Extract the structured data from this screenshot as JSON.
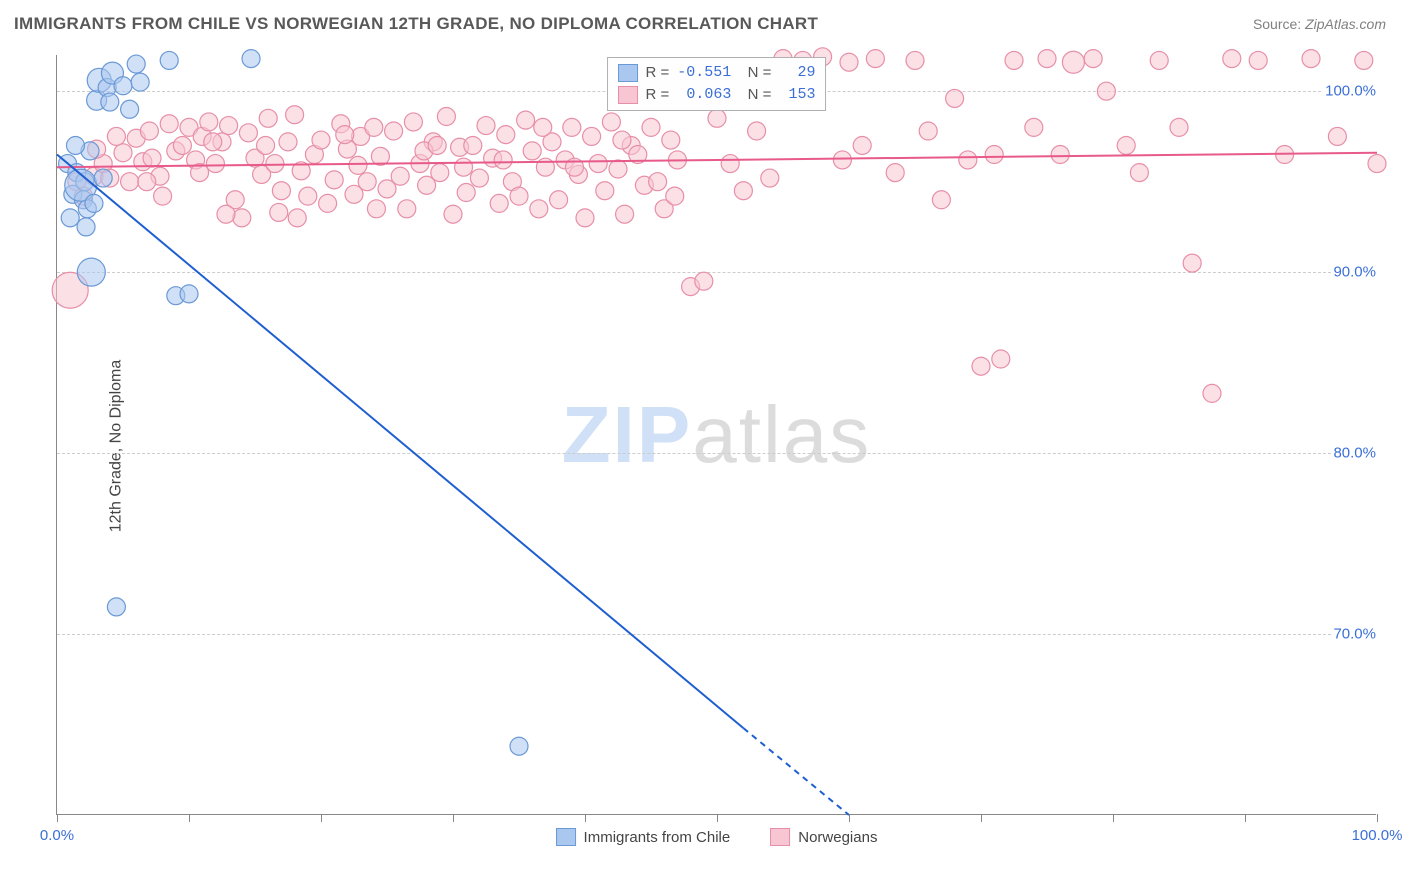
{
  "title": "IMMIGRANTS FROM CHILE VS NORWEGIAN 12TH GRADE, NO DIPLOMA CORRELATION CHART",
  "source_prefix": "Source: ",
  "source_name": "ZipAtlas.com",
  "ylabel": "12th Grade, No Diploma",
  "watermark_a": "ZIP",
  "watermark_b": "atlas",
  "chart": {
    "type": "scatter",
    "xlim": [
      0,
      100
    ],
    "ylim": [
      60,
      102
    ],
    "xtick_positions": [
      0,
      10,
      20,
      30,
      40,
      50,
      60,
      70,
      80,
      90,
      100
    ],
    "xtick_labels_shown": {
      "0": "0.0%",
      "100": "100.0%"
    },
    "ytick_positions": [
      70,
      80,
      90,
      100
    ],
    "ytick_labels": {
      "70": "70.0%",
      "80": "80.0%",
      "90": "90.0%",
      "100": "100.0%"
    },
    "grid_color": "#cccccc",
    "background_color": "#ffffff",
    "axis_color": "#888888",
    "tick_label_color": "#3b6fd6",
    "watermark_color_a": "#cfe0f7",
    "watermark_color_b": "#dcdcdc",
    "marker_radius": 9,
    "marker_stroke_width": 1.2,
    "trend_line_width": 2
  },
  "series": {
    "chile": {
      "label": "Immigrants from Chile",
      "fill": "#a9c7ef",
      "stroke": "#6a99d6",
      "line_color": "#1f5fd0",
      "R": "-0.551",
      "N": "29",
      "trend_line": {
        "x1": 0,
        "y1": 96.5,
        "x2": 60,
        "y2": 60
      },
      "trend_extrapolate": {
        "x1": 52,
        "y1": 64.8,
        "x2": 60,
        "y2": 60
      },
      "points": [
        [
          0.8,
          96.0
        ],
        [
          1.2,
          94.3
        ],
        [
          1.5,
          95.5
        ],
        [
          2.0,
          94.0
        ],
        [
          2.1,
          95.0
        ],
        [
          2.3,
          93.5
        ],
        [
          2.5,
          96.7
        ],
        [
          3.0,
          99.5,
          10
        ],
        [
          3.2,
          100.6,
          12
        ],
        [
          3.8,
          100.2
        ],
        [
          4.0,
          99.4
        ],
        [
          4.2,
          101.0,
          11
        ],
        [
          5.0,
          100.3
        ],
        [
          5.5,
          99.0
        ],
        [
          6.0,
          101.5
        ],
        [
          6.3,
          100.5
        ],
        [
          8.5,
          101.7
        ],
        [
          9.0,
          88.7
        ],
        [
          10.0,
          88.8
        ],
        [
          14.7,
          101.8
        ],
        [
          4.5,
          71.5
        ],
        [
          35.0,
          63.8
        ],
        [
          1.0,
          93.0
        ],
        [
          1.8,
          94.8,
          16
        ],
        [
          2.6,
          90.0,
          14
        ],
        [
          1.4,
          97.0
        ],
        [
          2.2,
          92.5
        ],
        [
          2.8,
          93.8
        ],
        [
          3.5,
          95.2
        ]
      ]
    },
    "norwegians": {
      "label": "Norwegians",
      "fill": "#f7c6d2",
      "stroke": "#e78fa8",
      "line_color": "#e75a8a",
      "R": "0.063",
      "N": "153",
      "trend_line": {
        "x1": 0,
        "y1": 95.8,
        "x2": 100,
        "y2": 96.6
      },
      "points": [
        [
          1.0,
          89.0,
          18
        ],
        [
          1.5,
          95.0
        ],
        [
          2.0,
          94.2
        ],
        [
          2.8,
          95.3
        ],
        [
          3.5,
          96.0
        ],
        [
          4.0,
          95.2
        ],
        [
          5.0,
          96.6
        ],
        [
          5.5,
          95.0
        ],
        [
          6.0,
          97.4
        ],
        [
          6.5,
          96.1
        ],
        [
          7.0,
          97.8
        ],
        [
          7.8,
          95.3
        ],
        [
          8.5,
          98.2
        ],
        [
          9.0,
          96.7
        ],
        [
          9.5,
          97.0
        ],
        [
          10.0,
          98.0
        ],
        [
          10.5,
          96.2
        ],
        [
          11.0,
          97.5
        ],
        [
          11.5,
          98.3
        ],
        [
          12.0,
          96.0
        ],
        [
          12.5,
          97.2
        ],
        [
          13.0,
          98.1
        ],
        [
          13.5,
          94.0
        ],
        [
          14.0,
          93.0
        ],
        [
          14.5,
          97.7
        ],
        [
          15.0,
          96.3
        ],
        [
          15.5,
          95.4
        ],
        [
          16.0,
          98.5
        ],
        [
          16.5,
          96.0
        ],
        [
          17.0,
          94.5
        ],
        [
          17.5,
          97.2
        ],
        [
          18.0,
          98.7
        ],
        [
          18.5,
          95.6
        ],
        [
          19.0,
          94.2
        ],
        [
          19.5,
          96.5
        ],
        [
          20.0,
          97.3
        ],
        [
          20.5,
          93.8
        ],
        [
          21.0,
          95.1
        ],
        [
          21.5,
          98.2
        ],
        [
          22.0,
          96.8
        ],
        [
          22.5,
          94.3
        ],
        [
          23.0,
          97.5
        ],
        [
          23.5,
          95.0
        ],
        [
          24.0,
          98.0
        ],
        [
          24.5,
          96.4
        ],
        [
          25.0,
          94.6
        ],
        [
          25.5,
          97.8
        ],
        [
          26.0,
          95.3
        ],
        [
          26.5,
          93.5
        ],
        [
          27.0,
          98.3
        ],
        [
          27.5,
          96.0
        ],
        [
          28.0,
          94.8
        ],
        [
          28.5,
          97.2
        ],
        [
          29.0,
          95.5
        ],
        [
          29.5,
          98.6
        ],
        [
          30.0,
          93.2
        ],
        [
          30.5,
          96.9
        ],
        [
          31.0,
          94.4
        ],
        [
          31.5,
          97.0
        ],
        [
          32.0,
          95.2
        ],
        [
          32.5,
          98.1
        ],
        [
          33.0,
          96.3
        ],
        [
          33.5,
          93.8
        ],
        [
          34.0,
          97.6
        ],
        [
          34.5,
          95.0
        ],
        [
          35.0,
          94.2
        ],
        [
          35.5,
          98.4
        ],
        [
          36.0,
          96.7
        ],
        [
          36.5,
          93.5
        ],
        [
          37.0,
          95.8
        ],
        [
          37.5,
          97.2
        ],
        [
          38.0,
          94.0
        ],
        [
          38.5,
          96.2
        ],
        [
          39.0,
          98.0
        ],
        [
          39.5,
          95.4
        ],
        [
          40.0,
          93.0
        ],
        [
          40.5,
          97.5
        ],
        [
          41.0,
          96.0
        ],
        [
          41.5,
          94.5
        ],
        [
          42.0,
          98.3
        ],
        [
          42.5,
          95.7
        ],
        [
          43.0,
          93.2
        ],
        [
          43.5,
          97.0
        ],
        [
          44.0,
          96.5
        ],
        [
          44.5,
          94.8
        ],
        [
          45.0,
          98.0
        ],
        [
          45.5,
          95.0
        ],
        [
          46.0,
          93.5
        ],
        [
          46.5,
          97.3
        ],
        [
          47.0,
          96.2
        ],
        [
          48.0,
          89.2
        ],
        [
          49.0,
          89.5
        ],
        [
          50.0,
          98.5
        ],
        [
          51.0,
          96.0
        ],
        [
          52.0,
          94.5
        ],
        [
          53.0,
          97.8
        ],
        [
          54.0,
          95.2
        ],
        [
          55.0,
          101.8
        ],
        [
          56.5,
          101.7
        ],
        [
          58.0,
          101.9
        ],
        [
          59.5,
          96.2
        ],
        [
          60.0,
          101.6
        ],
        [
          61.0,
          97.0
        ],
        [
          62.0,
          101.8
        ],
        [
          63.5,
          95.5
        ],
        [
          65.0,
          101.7
        ],
        [
          66.0,
          97.8
        ],
        [
          67.0,
          94.0
        ],
        [
          68.0,
          99.6
        ],
        [
          69.0,
          96.2
        ],
        [
          70.0,
          84.8
        ],
        [
          71.0,
          96.5
        ],
        [
          71.5,
          85.2
        ],
        [
          72.5,
          101.7
        ],
        [
          74.0,
          98.0
        ],
        [
          75.0,
          101.8
        ],
        [
          76.0,
          96.5
        ],
        [
          77.0,
          101.6,
          11
        ],
        [
          78.5,
          101.8
        ],
        [
          79.5,
          100.0
        ],
        [
          81.0,
          97.0
        ],
        [
          82.0,
          95.5
        ],
        [
          83.5,
          101.7
        ],
        [
          85.0,
          98.0
        ],
        [
          86.0,
          90.5
        ],
        [
          87.5,
          83.3
        ],
        [
          89.0,
          101.8
        ],
        [
          91.0,
          101.7
        ],
        [
          93.0,
          96.5
        ],
        [
          95.0,
          101.8
        ],
        [
          97.0,
          97.5
        ],
        [
          99.0,
          101.7
        ],
        [
          100.0,
          96.0
        ],
        [
          3.0,
          96.8
        ],
        [
          4.5,
          97.5
        ],
        [
          7.2,
          96.3
        ],
        [
          8.0,
          94.2
        ],
        [
          10.8,
          95.5
        ],
        [
          12.8,
          93.2
        ],
        [
          15.8,
          97.0
        ],
        [
          18.2,
          93.0
        ],
        [
          21.8,
          97.6
        ],
        [
          24.2,
          93.5
        ],
        [
          27.8,
          96.7
        ],
        [
          30.8,
          95.8
        ],
        [
          33.8,
          96.2
        ],
        [
          36.8,
          98.0
        ],
        [
          39.2,
          95.8
        ],
        [
          42.8,
          97.3
        ],
        [
          46.8,
          94.2
        ],
        [
          6.8,
          95.0
        ],
        [
          11.8,
          97.2
        ],
        [
          16.8,
          93.3
        ],
        [
          22.8,
          95.9
        ],
        [
          28.8,
          97.0
        ]
      ]
    }
  },
  "bottom_legend": [
    {
      "key": "chile"
    },
    {
      "key": "norwegians"
    }
  ]
}
